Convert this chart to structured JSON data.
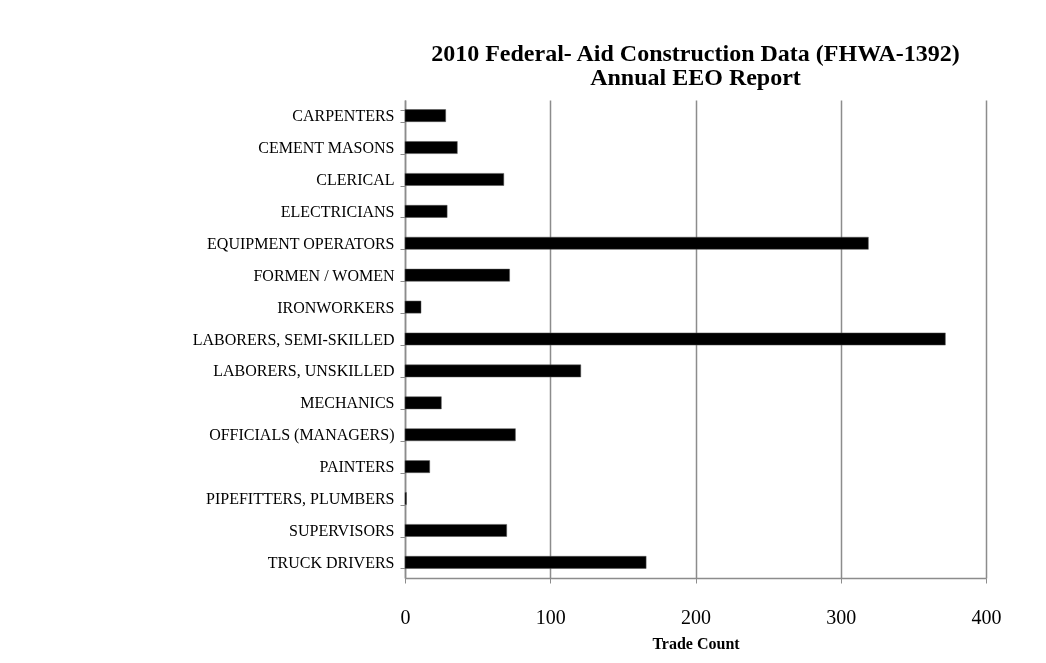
{
  "chart_data": {
    "type": "bar",
    "orientation": "horizontal",
    "title": "2010 Federal- Aid Construction Data (FHWA-1392)",
    "subtitle": "Annual EEO Report",
    "xlabel": "Trade Count",
    "categories": [
      "CARPENTERS",
      "CEMENT MASONS",
      "CLERICAL",
      "ELECTRICIANS",
      "EQUIPMENT OPERATORS",
      "FORMEN / WOMEN",
      "IRONWORKERS",
      "LABORERS, SEMI-SKILLED",
      "LABORERS, UNSKILLED",
      "MECHANICS",
      "OFFICIALS (MANAGERS)",
      "PAINTERS",
      "PIPEFITTERS, PLUMBERS",
      "SUPERVISORS",
      "TRUCK DRIVERS"
    ],
    "values": [
      28,
      36,
      68,
      29,
      319,
      72,
      11,
      372,
      121,
      25,
      76,
      17,
      1,
      70,
      166
    ],
    "color": "#000000",
    "xlim": [
      0,
      400
    ],
    "xticks": [
      0,
      100,
      200,
      300,
      400
    ],
    "grid": "x"
  }
}
